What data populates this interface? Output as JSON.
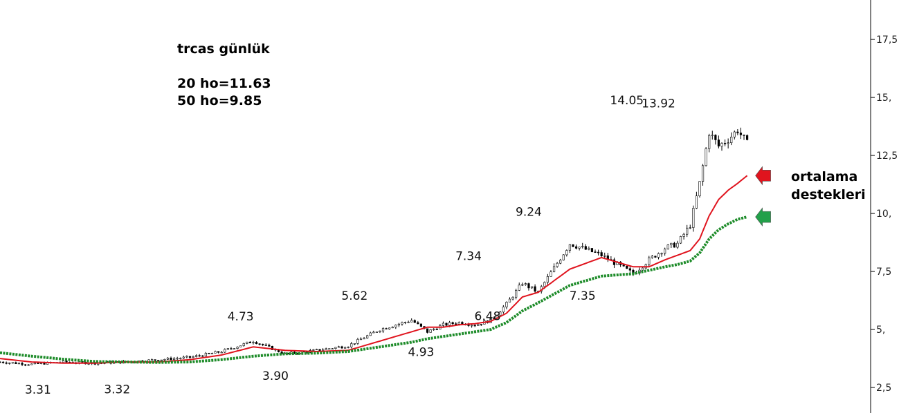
{
  "chart_data": {
    "type": "line",
    "title_lines": [
      "trcas günlük",
      "20 ho=11.63",
      "50 ho=9.85"
    ],
    "side_note_lines": [
      "ortalama",
      "destekleri"
    ],
    "y_axis": {
      "ticks": [
        2.5,
        5,
        7.5,
        10,
        12.5,
        15,
        17.5
      ],
      "tick_labels": [
        "2,5",
        "5,",
        "7,5",
        "10,",
        "12,5",
        "15,",
        "17,5"
      ],
      "ylim": [
        1.4,
        19.2
      ]
    },
    "x": [
      0,
      10,
      20,
      30,
      40,
      50,
      60,
      70,
      80,
      90,
      100,
      110,
      120,
      130,
      135,
      140,
      145,
      150,
      155,
      160,
      165,
      170,
      180,
      190,
      200,
      205,
      210,
      214,
      218,
      221,
      224,
      227,
      230,
      233,
      236
    ],
    "xlim": [
      0,
      275
    ],
    "price": [
      3.6,
      3.5,
      3.6,
      3.55,
      3.6,
      3.7,
      3.8,
      4.05,
      4.5,
      3.95,
      4.1,
      4.3,
      5.0,
      5.4,
      4.9,
      5.2,
      5.3,
      5.2,
      5.4,
      6.1,
      7.0,
      6.6,
      8.7,
      8.2,
      7.4,
      8.0,
      8.5,
      8.7,
      9.5,
      11.3,
      13.5,
      12.9,
      13.2,
      13.6,
      13.0
    ],
    "series": [
      {
        "name": "20 ho",
        "color": "#e0141e",
        "values": [
          3.75,
          3.6,
          3.55,
          3.55,
          3.6,
          3.6,
          3.7,
          3.9,
          4.25,
          4.1,
          4.05,
          4.1,
          4.5,
          4.9,
          5.1,
          5.1,
          5.2,
          5.25,
          5.35,
          5.7,
          6.4,
          6.6,
          7.6,
          8.1,
          7.7,
          7.7,
          8.0,
          8.2,
          8.4,
          8.9,
          9.9,
          10.6,
          11.0,
          11.3,
          11.63
        ]
      },
      {
        "name": "50 ho",
        "color": "#1e8c2a",
        "values": [
          4.0,
          3.85,
          3.72,
          3.62,
          3.6,
          3.58,
          3.6,
          3.7,
          3.85,
          3.95,
          3.98,
          4.05,
          4.25,
          4.45,
          4.6,
          4.7,
          4.8,
          4.9,
          5.0,
          5.3,
          5.8,
          6.15,
          6.9,
          7.3,
          7.4,
          7.55,
          7.7,
          7.8,
          7.95,
          8.3,
          8.9,
          9.3,
          9.55,
          9.75,
          9.85
        ]
      }
    ],
    "annotations": [
      {
        "text": "3.31",
        "x": 12,
        "y": 3.31
      },
      {
        "text": "3.32",
        "x": 37,
        "y": 3.32
      },
      {
        "text": "4.73",
        "x": 76,
        "y": 4.73
      },
      {
        "text": "3.90",
        "x": 87,
        "y": 3.9
      },
      {
        "text": "5.62",
        "x": 112,
        "y": 5.62
      },
      {
        "text": "4.93",
        "x": 133,
        "y": 4.93
      },
      {
        "text": "7.34",
        "x": 148,
        "y": 7.34
      },
      {
        "text": "6.48",
        "x": 154,
        "y": 6.48
      },
      {
        "text": "9.24",
        "x": 167,
        "y": 9.24
      },
      {
        "text": "7.35",
        "x": 184,
        "y": 7.35
      },
      {
        "text": "14.05",
        "x": 198,
        "y": 14.05
      },
      {
        "text": "13.92",
        "x": 208,
        "y": 13.92
      }
    ],
    "arrows": [
      {
        "name": "red-arrow",
        "color": "#e0141e",
        "y": 11.63
      },
      {
        "name": "green-arrow",
        "color": "#22a04a",
        "y": 9.85
      }
    ],
    "grid": false,
    "legend": "none"
  }
}
